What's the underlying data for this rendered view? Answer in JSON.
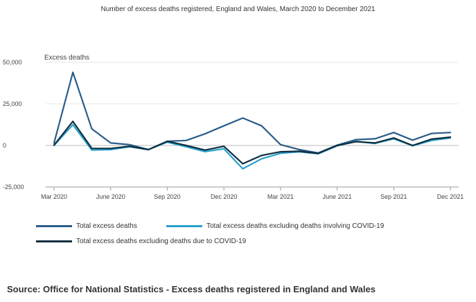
{
  "chart_data": {
    "type": "line",
    "title": "Number of excess deaths registered, England and Wales, March 2020 to December 2021",
    "ylabel": "Excess deaths",
    "xlabel": "",
    "ylim": [
      -25000,
      50000
    ],
    "yticks": [
      "50,000",
      "25,000",
      "0",
      "-25,000"
    ],
    "yticks_values": [
      50000,
      25000,
      0,
      -25000
    ],
    "x": [
      "Mar 2020",
      "Apr 2020",
      "May 2020",
      "Jun 2020",
      "Jul 2020",
      "Aug 2020",
      "Sep 2020",
      "Oct 2020",
      "Nov 2020",
      "Dec 2020",
      "Jan 2021",
      "Feb 2021",
      "Mar 2021",
      "Apr 2021",
      "May 2021",
      "Jun 2021",
      "Jul 2021",
      "Aug 2021",
      "Sep 2021",
      "Oct 2021",
      "Nov 2021",
      "Dec 2021"
    ],
    "xtick_labels": [
      "Mar 2020",
      "June 2020",
      "Sep 2020",
      "Dec 2020",
      "Mar 2021",
      "June 2021",
      "Sep 2021",
      "Dec 2021"
    ],
    "xtick_indices": [
      0,
      3,
      6,
      9,
      12,
      15,
      18,
      21
    ],
    "grid": true,
    "series": [
      {
        "name": "Total excess deaths",
        "color": "#2a5c8a",
        "values": [
          1500,
          44000,
          10000,
          1500,
          500,
          -2500,
          2500,
          3000,
          7000,
          11800,
          16500,
          11800,
          500,
          -2500,
          -4500,
          200,
          3500,
          4000,
          7800,
          3200,
          7200,
          7800
        ]
      },
      {
        "name": "Total excess deaths excluding deaths involving COVID-19",
        "color": "#27a0cc",
        "values": [
          0,
          12500,
          -2800,
          -2500,
          -800,
          -2500,
          2000,
          -800,
          -3700,
          -2000,
          -14000,
          -8000,
          -4700,
          -3800,
          -5000,
          -200,
          2500,
          1200,
          4000,
          -200,
          3000,
          4500
        ]
      },
      {
        "name": "Total excess deaths excluding deaths due to COVID-19",
        "color": "#0f2e40",
        "values": [
          200,
          14500,
          -1800,
          -1800,
          -500,
          -2500,
          2500,
          0,
          -2800,
          -500,
          -11000,
          -6000,
          -3800,
          -3500,
          -4800,
          0,
          2300,
          1500,
          4500,
          0,
          3800,
          5000
        ]
      }
    ]
  },
  "source": "Source: Office for National Statistics - Excess deaths registered in England and Wales"
}
